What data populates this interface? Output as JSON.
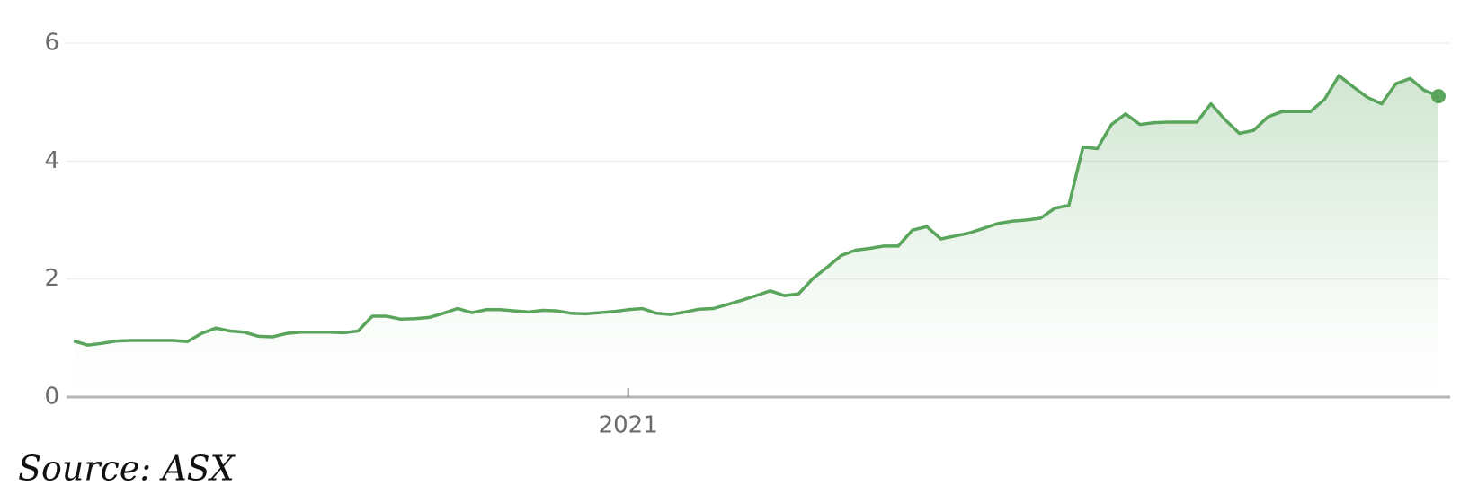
{
  "chart_data": {
    "type": "line",
    "source": "Source: ASX",
    "categories": [
      null,
      null,
      null,
      null,
      null,
      null,
      null,
      null,
      null,
      null,
      null,
      null,
      null,
      null,
      null,
      null,
      null,
      null,
      null,
      null,
      null,
      null,
      null,
      null,
      null,
      null,
      null,
      null,
      null,
      null,
      null,
      null,
      null,
      null,
      null,
      null,
      null,
      null,
      null,
      "2021",
      null,
      null,
      null,
      null,
      null,
      null,
      null,
      null,
      null,
      null,
      null,
      null,
      null,
      null,
      null,
      null,
      null,
      null,
      null,
      null,
      null,
      null,
      null,
      null,
      null,
      null,
      null,
      null,
      null,
      null,
      null,
      null,
      null,
      null,
      null,
      null,
      null,
      null,
      null,
      null,
      null,
      null,
      null,
      null,
      null,
      null,
      null,
      null,
      null,
      null,
      null,
      null,
      null,
      null,
      null,
      null,
      null
    ],
    "series": [
      {
        "color": "#5aa55c",
        "values": [
          0.95,
          0.88,
          0.91,
          0.95,
          0.96,
          0.96,
          0.96,
          0.96,
          0.94,
          1.08,
          1.17,
          1.12,
          1.1,
          1.03,
          1.02,
          1.08,
          1.1,
          1.1,
          1.1,
          1.09,
          1.12,
          1.37,
          1.37,
          1.32,
          1.33,
          1.35,
          1.42,
          1.5,
          1.43,
          1.48,
          1.48,
          1.46,
          1.44,
          1.47,
          1.46,
          1.42,
          1.41,
          1.43,
          1.45,
          1.48,
          1.5,
          1.42,
          1.4,
          1.44,
          1.49,
          1.5,
          1.57,
          1.64,
          1.72,
          1.8,
          1.72,
          1.75,
          2.01,
          2.2,
          2.4,
          2.49,
          2.52,
          2.56,
          2.56,
          2.83,
          2.89,
          2.68,
          2.73,
          2.78,
          2.86,
          2.94,
          2.98,
          3.0,
          3.03,
          3.2,
          3.25,
          4.24,
          4.21,
          4.62,
          4.8,
          4.62,
          4.65,
          4.66,
          4.66,
          4.66,
          4.97,
          4.7,
          4.47,
          4.52,
          4.75,
          4.84,
          4.84,
          4.84,
          5.05,
          5.45,
          5.26,
          5.08,
          4.97,
          5.31,
          5.4,
          5.2,
          5.1
        ]
      }
    ],
    "ylim": [
      0,
      6
    ],
    "yticks": [
      0,
      2,
      4,
      6
    ],
    "grid": true
  }
}
